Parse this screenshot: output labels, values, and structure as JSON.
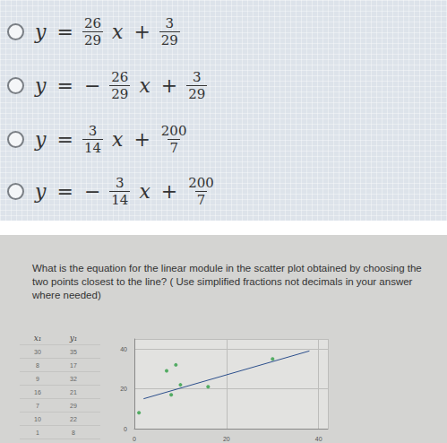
{
  "options": [
    [
      "y",
      "=",
      {
        "num": "26",
        "den": "29"
      },
      "x",
      "+",
      {
        "num": "3",
        "den": "29"
      }
    ],
    [
      "y",
      "=",
      "−",
      {
        "num": "26",
        "den": "29"
      },
      "x",
      "+",
      {
        "num": "3",
        "den": "29"
      }
    ],
    [
      "y",
      "=",
      {
        "num": "3",
        "den": "14"
      },
      "x",
      "+",
      {
        "num": "200",
        "den": "7"
      }
    ],
    [
      "y",
      "=",
      "−",
      {
        "num": "3",
        "den": "14"
      },
      "x",
      "+",
      {
        "num": "200",
        "den": "7"
      }
    ]
  ],
  "question": "What is the equation for the linear module in the scatter plot obtained by choosing the two points closest to the line? ( Use simplified fractions not decimals in your answer where needed)",
  "table": {
    "headers": [
      "x₁",
      "y₁"
    ]
  },
  "chart_data": {
    "type": "scatter",
    "x": [
      30,
      8,
      9,
      16,
      7,
      10,
      1
    ],
    "y": [
      35,
      17,
      32,
      21,
      29,
      22,
      8
    ],
    "color": "#2e9e44",
    "line": {
      "x": [
        2,
        38
      ],
      "y": [
        15,
        39
      ],
      "color": "#2c4f8c"
    },
    "xlim": [
      0,
      42
    ],
    "xticks": [
      0,
      20,
      40
    ],
    "ylim": [
      0,
      45
    ],
    "yticks": [
      0,
      20,
      40
    ],
    "grid": true
  }
}
